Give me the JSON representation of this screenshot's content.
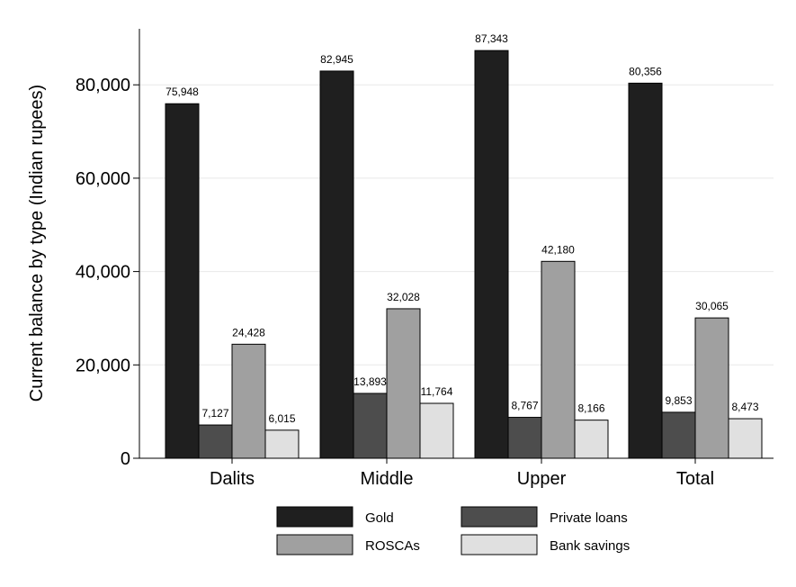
{
  "chart_data": {
    "type": "bar",
    "title": "",
    "xlabel": "",
    "ylabel": "Current balance by type (Indian rupees)",
    "ylim": [
      0,
      92000
    ],
    "yticks": [
      0,
      20000,
      40000,
      60000,
      80000
    ],
    "ytick_labels": [
      "0",
      "20,000",
      "40,000",
      "60,000",
      "80,000"
    ],
    "grid": true,
    "legend_position": "bottom",
    "categories": [
      "Dalits",
      "Middle",
      "Upper",
      "Total"
    ],
    "series": [
      {
        "name": "Gold",
        "color": "#1f1f1f",
        "values": [
          75948,
          82945,
          87343,
          80356
        ],
        "labels": [
          "75,948",
          "82,945",
          "87,343",
          "80,356"
        ]
      },
      {
        "name": "Private loans",
        "color": "#4d4d4d",
        "values": [
          7127,
          13893,
          8767,
          9853
        ],
        "labels": [
          "7,127",
          "13,893",
          "8,767",
          "9,853"
        ]
      },
      {
        "name": "ROSCAs",
        "color": "#a0a0a0",
        "values": [
          24428,
          32028,
          42180,
          30065
        ],
        "labels": [
          "24,428",
          "32,028",
          "42,180",
          "30,065"
        ]
      },
      {
        "name": "Bank savings",
        "color": "#e0e0e0",
        "values": [
          6015,
          11764,
          8166,
          8473
        ],
        "labels": [
          "6,015",
          "11,764",
          "8,166",
          "8,473"
        ]
      }
    ]
  }
}
